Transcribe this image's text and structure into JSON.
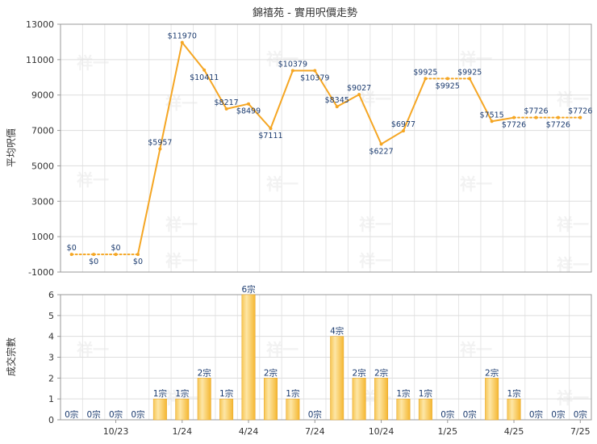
{
  "chart_data": [
    {
      "type": "line",
      "title": "錦禧苑 - 實用呎價走勢",
      "ylabel": "平均呎價",
      "ylim": [
        -1000,
        13000
      ],
      "yticks": [
        -1000,
        1000,
        3000,
        5000,
        7000,
        9000,
        11000,
        13000
      ],
      "grid": true,
      "line_color": "#f5a623",
      "series": [
        {
          "values": [
            0,
            0,
            0,
            0,
            5957,
            11970,
            10411,
            8217,
            8499,
            7111,
            10379,
            10379,
            8345,
            9027,
            6227,
            6977,
            9925,
            9925,
            9925,
            7515,
            7726,
            7726,
            7726,
            7726
          ],
          "labels": [
            "$0",
            "$0",
            "$0",
            "$0",
            "$5957",
            "$11970",
            "$10411",
            "$8217",
            "$8499",
            "$7111",
            "$10379",
            "$10379",
            "$8345",
            "$9027",
            "$6227",
            "$6977",
            "$9925",
            "$9925",
            "$9925",
            "$7515",
            "$7726",
            "$7726",
            "$7726",
            "$7726"
          ],
          "dotted_segments": [
            0,
            1,
            2,
            16,
            17,
            20,
            21,
            22
          ]
        }
      ]
    },
    {
      "type": "bar",
      "ylabel": "成交宗數",
      "ylim": [
        0,
        6
      ],
      "yticks": [
        0,
        1,
        2,
        3,
        4,
        5,
        6
      ],
      "grid": true,
      "bar_color": "#f5b731",
      "values": [
        0,
        0,
        0,
        0,
        1,
        1,
        2,
        1,
        6,
        2,
        1,
        0,
        4,
        2,
        2,
        1,
        1,
        0,
        0,
        2,
        1,
        0,
        0,
        0
      ],
      "labels": [
        "0宗",
        "0宗",
        "0宗",
        "0宗",
        "1宗",
        "1宗",
        "2宗",
        "1宗",
        "6宗",
        "2宗",
        "1宗",
        "0宗",
        "4宗",
        "2宗",
        "2宗",
        "1宗",
        "1宗",
        "0宗",
        "0宗",
        "2宗",
        "1宗",
        "0宗",
        "0宗",
        "0宗"
      ],
      "xtick_labels": [
        "10/23",
        "1/24",
        "4/24",
        "7/24",
        "10/24",
        "1/25",
        "4/25",
        "7/25"
      ]
    }
  ],
  "watermark": "祥一"
}
